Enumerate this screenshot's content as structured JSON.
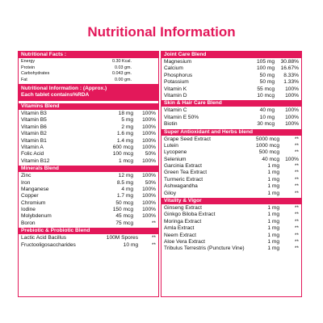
{
  "title": "Nutritional Information",
  "left": {
    "nutritional_facts": {
      "header": "Nutritional Facts :",
      "rows": [
        [
          "Energy",
          "0.30 Kcal.",
          ""
        ],
        [
          "Protein",
          "0.03 gm.",
          ""
        ],
        [
          "Carbohydrates",
          "0.043 gm.",
          ""
        ],
        [
          "Fat",
          "0.00 gm.",
          ""
        ]
      ]
    },
    "nutritional_information": {
      "header_line1": "Nutritional Information : (Approx.)",
      "header_line2": "Each tablet contains%RDA"
    },
    "vitamins_blend": {
      "header": "Vitamins Blend",
      "rows": [
        [
          "Vitamin B3",
          "18 mg",
          "100%"
        ],
        [
          "Vitamin B5",
          "5 mg",
          "100%"
        ],
        [
          "Vitamin B6",
          "2 mg",
          "100%"
        ],
        [
          "Vitamin B2",
          "1.6 mg",
          "100%"
        ],
        [
          "Vitamin B1",
          "1.4 mg",
          "100%"
        ],
        [
          "Vitamin A",
          "600 mcg",
          "100%"
        ],
        [
          "Folic Acid",
          "100 mcg",
          "50%"
        ],
        [
          "Vitamin B12",
          "1 mcg",
          "100%"
        ]
      ]
    },
    "minerals_blend": {
      "header": "Minerals Blend",
      "rows": [
        [
          "Zinc",
          "12 mg",
          "100%"
        ],
        [
          "Iron",
          "8.5 mg",
          "50%"
        ],
        [
          "Manganese",
          "4 mg",
          "100%"
        ],
        [
          "Copper",
          "1.7 mg",
          "100%"
        ],
        [
          "Chromium",
          "50 mcg",
          "100%"
        ],
        [
          "Iodine",
          "150 mcg",
          "100%"
        ],
        [
          "Molybdenum",
          "45 mcg",
          "100%"
        ],
        [
          "Boron",
          "75 mcg",
          "**"
        ]
      ]
    },
    "prebiotic_probiotic": {
      "header": "Prebiotic & Probiotic Blend",
      "rows": [
        [
          "Lactic Acid Bacillus",
          "100M Spores",
          "**"
        ],
        [
          "Fructooligosaccharides",
          "10 mg",
          "**"
        ]
      ]
    }
  },
  "right": {
    "joint_care": {
      "header": "Joint Care Blend",
      "rows": [
        [
          "Magnesium",
          "105 mg",
          "30.88%"
        ],
        [
          "Calcium",
          "100 mg",
          "16.67%"
        ],
        [
          "Phosphorus",
          "50 mg",
          "8.33%"
        ],
        [
          "Potassium",
          "50 mg",
          "1.33%"
        ],
        [
          "Vitamin K",
          "55 mcg",
          "100%"
        ],
        [
          "Vitamin D",
          "10 mcg",
          "100%"
        ]
      ]
    },
    "skin_hair": {
      "header": "Skin & Hair Care Blend",
      "rows": [
        [
          "Vitamin C",
          "40 mg",
          "100%"
        ],
        [
          "Vitamin E 50%",
          "10 mg",
          "100%"
        ],
        [
          "Biotin",
          "30 mcg",
          "100%"
        ]
      ]
    },
    "super_antioxidant": {
      "header": "Super Antioxidant and Herbs blend",
      "rows": [
        [
          "Grape Seed Extract",
          "5000 mcg",
          "**"
        ],
        [
          "Lutein",
          "1000 mcg",
          "**"
        ],
        [
          "Lycopene",
          "500 mcg",
          "**"
        ],
        [
          "Selenium",
          "40 mcg",
          "100%"
        ],
        [
          "Garcinia Extract",
          "1 mg",
          "**"
        ],
        [
          "Green Tea Extract",
          "1 mg",
          "**"
        ],
        [
          "Turmeric Extract",
          "1 mg",
          "**"
        ],
        [
          "Ashwagandha",
          "1 mg",
          "**"
        ],
        [
          "Giloy",
          "1 mg",
          "**"
        ]
      ]
    },
    "vitality_vigor": {
      "header": "Vitality & Vigor",
      "rows": [
        [
          "Ginseng Extract",
          "1 mg",
          "**"
        ],
        [
          "Ginkgo Biloba Extract",
          "1 mg",
          "**"
        ],
        [
          "Moringa Extract",
          "1 mg",
          "**"
        ],
        [
          "Amla Extract",
          "1 mg",
          "**"
        ],
        [
          "Neem Extract",
          "1 mg",
          "**"
        ],
        [
          "Aloe Vera Extract",
          "1 mg",
          "**"
        ],
        [
          "Tribulus Terrestris (Puncture Vine)",
          "1 mg",
          "**"
        ]
      ]
    }
  }
}
